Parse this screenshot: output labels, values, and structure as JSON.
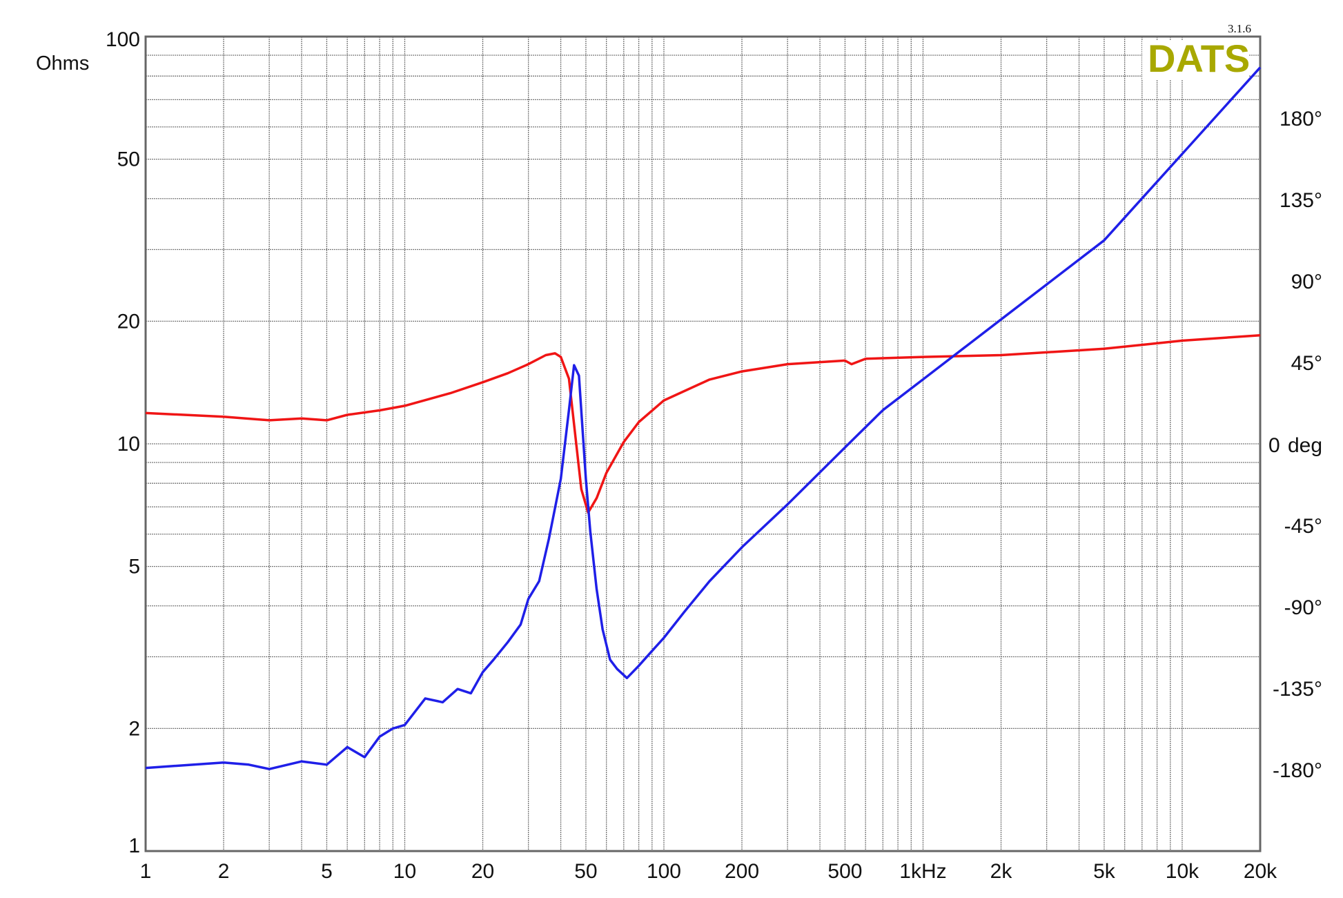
{
  "chart_data": {
    "type": "line",
    "version_label": "3.1.6",
    "logo_text": "DATS",
    "y_left_label": "Ohms",
    "y_right_label_zero": "0",
    "y_right_label_unit": "deg",
    "x_scale": "log",
    "y_left_scale": "log",
    "xlim": [
      1,
      20000
    ],
    "ylim_left": [
      1,
      100
    ],
    "ylim_right_deg_per_decade": 225,
    "grid": true,
    "x_tick_labels": [
      {
        "v": 1,
        "t": "1"
      },
      {
        "v": 2,
        "t": "2"
      },
      {
        "v": 5,
        "t": "5"
      },
      {
        "v": 10,
        "t": "10"
      },
      {
        "v": 20,
        "t": "20"
      },
      {
        "v": 50,
        "t": "50"
      },
      {
        "v": 100,
        "t": "100"
      },
      {
        "v": 200,
        "t": "200"
      },
      {
        "v": 500,
        "t": "500"
      },
      {
        "v": 1000,
        "t": "1kHz"
      },
      {
        "v": 2000,
        "t": "2k"
      },
      {
        "v": 5000,
        "t": "5k"
      },
      {
        "v": 10000,
        "t": "10k"
      },
      {
        "v": 20000,
        "t": "20k"
      }
    ],
    "y_left_tick_labels": [
      {
        "v": 100,
        "t": "100"
      },
      {
        "v": 50,
        "t": "50"
      },
      {
        "v": 20,
        "t": "20"
      },
      {
        "v": 10,
        "t": "10"
      },
      {
        "v": 5,
        "t": "5"
      },
      {
        "v": 2,
        "t": "2"
      },
      {
        "v": 1,
        "t": "1"
      }
    ],
    "y_right_tick_labels": [
      {
        "v": 180,
        "t": "180°"
      },
      {
        "v": 135,
        "t": "135°"
      },
      {
        "v": 90,
        "t": "90°"
      },
      {
        "v": 45,
        "t": "45°"
      },
      {
        "v": -45,
        "t": "-45°"
      },
      {
        "v": -90,
        "t": "-90°"
      },
      {
        "v": -135,
        "t": "-135°"
      },
      {
        "v": -180,
        "t": "-180°"
      }
    ],
    "colors": {
      "impedance": "#1f1fe8",
      "phase": "#f01515",
      "ohms_label": "#4646ee",
      "deg_label": "#f02020",
      "logo": "#a8a800",
      "grid": "#777777",
      "axis": "#666666"
    },
    "series": [
      {
        "axis": "left",
        "x": [
          1,
          2,
          2.5,
          3,
          4,
          5,
          6,
          7,
          8,
          9,
          10,
          12,
          14,
          16,
          18,
          20,
          22,
          25,
          28,
          30,
          33,
          36,
          40,
          43,
          45,
          47,
          50,
          52,
          55,
          58,
          62,
          66,
          72,
          80,
          90,
          100,
          120,
          150,
          200,
          300,
          500,
          700,
          1000,
          2000,
          5000,
          10000,
          20000
        ],
        "y": [
          1.6,
          1.65,
          1.63,
          1.59,
          1.66,
          1.63,
          1.8,
          1.7,
          1.91,
          2.0,
          2.04,
          2.37,
          2.32,
          2.5,
          2.44,
          2.75,
          2.95,
          3.26,
          3.6,
          4.16,
          4.6,
          5.85,
          8.2,
          12.1,
          15.6,
          14.7,
          8.2,
          6.1,
          4.4,
          3.5,
          2.95,
          2.8,
          2.66,
          2.85,
          3.1,
          3.34,
          3.87,
          4.6,
          5.57,
          7.1,
          9.8,
          12.1,
          14.4,
          20.2,
          31.6,
          51.5,
          84
        ]
      },
      {
        "axis": "right",
        "x": [
          1,
          2,
          3,
          4,
          5,
          6,
          8,
          10,
          15,
          20,
          25,
          30,
          35,
          38,
          40,
          43,
          46,
          48,
          51,
          55,
          60,
          70,
          80,
          100,
          150,
          200,
          300,
          500,
          530,
          600,
          1000,
          2000,
          5000,
          10000,
          20000
        ],
        "y": [
          17,
          15,
          13,
          14,
          13,
          16,
          18.5,
          21,
          28,
          34,
          39,
          44,
          49,
          50,
          48,
          36,
          -1.5,
          -25,
          -38,
          -30,
          -16,
          1,
          12,
          24,
          35.5,
          40,
          44,
          46,
          44,
          47,
          48,
          49,
          52.5,
          57,
          60
        ]
      }
    ]
  }
}
